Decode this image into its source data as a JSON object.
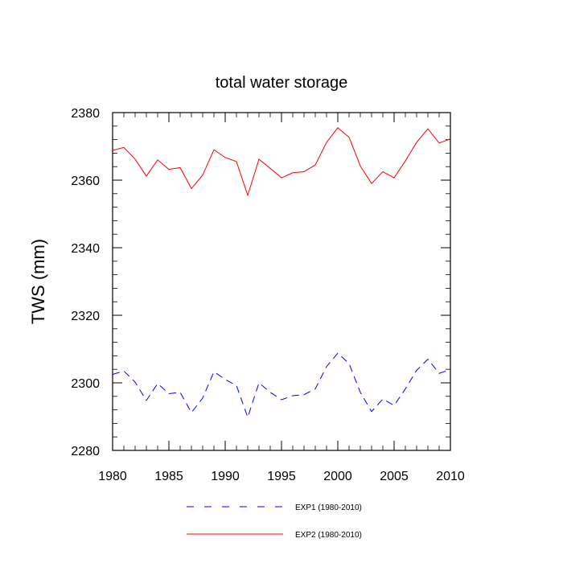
{
  "chart_data": {
    "type": "line",
    "title": "total water storage",
    "xlabel": "",
    "ylabel": "TWS  (mm)",
    "xlim": [
      1980,
      2010
    ],
    "ylim": [
      2280,
      2380
    ],
    "x_ticks": [
      1980,
      1985,
      1990,
      1995,
      2000,
      2005,
      2010
    ],
    "y_ticks": [
      2280,
      2300,
      2320,
      2340,
      2360,
      2380
    ],
    "grid": false,
    "legend_position": "bottom",
    "x": [
      1980,
      1981,
      1982,
      1983,
      1984,
      1985,
      1986,
      1987,
      1988,
      1989,
      1990,
      1991,
      1992,
      1993,
      1994,
      1995,
      1996,
      1997,
      1998,
      1999,
      2000,
      2001,
      2002,
      2003,
      2004,
      2005,
      2006,
      2007,
      2008,
      2009,
      2010
    ],
    "series": [
      {
        "name": "EXP1 (1980-2010)",
        "color": "#0000ff",
        "dash": "dashed",
        "values": [
          2302.5,
          2303.5,
          2300.2,
          2294.8,
          2299.8,
          2296.8,
          2297.2,
          2291.2,
          2295.5,
          2303.3,
          2301,
          2299.2,
          2289.8,
          2300,
          2297.2,
          2295,
          2296.2,
          2296.5,
          2298.2,
          2304.8,
          2308.8,
          2305.7,
          2297.2,
          2291.5,
          2295.2,
          2293.3,
          2298.2,
          2303.7,
          2307,
          2302.8,
          2304
        ]
      },
      {
        "name": "EXP2 (1980-2010)",
        "color": "#ff0000",
        "dash": "solid",
        "values": [
          2368.8,
          2369.7,
          2366.2,
          2361.2,
          2366,
          2363.2,
          2363.7,
          2357.5,
          2361.5,
          2369,
          2366.7,
          2365.5,
          2355.5,
          2366.2,
          2363.5,
          2360.7,
          2362.2,
          2362.5,
          2364.5,
          2371.2,
          2375.5,
          2372.7,
          2364.2,
          2359,
          2362.5,
          2360.7,
          2365.7,
          2371.2,
          2375.2,
          2371,
          2372.2
        ]
      }
    ]
  }
}
